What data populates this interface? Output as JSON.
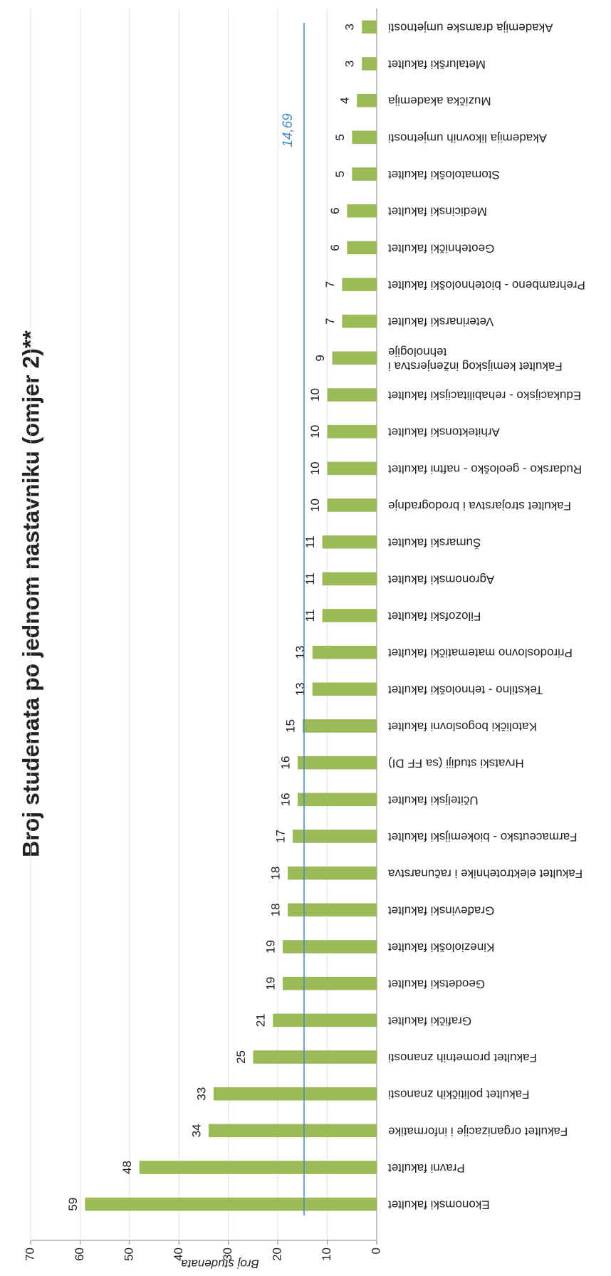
{
  "chart_data": {
    "type": "bar",
    "title": "Broj studenata po jednom nastavniku (omjer 2)**",
    "y_label": "Broj studenata",
    "categories": [
      "Ekonomski fakultet",
      "Pravni fakultet",
      "Fakultet organizacije i informatike",
      "Fakultet političkih znanosti",
      "Fakultet prometnih znanosti",
      "Grafički fakultet",
      "Geodetski fakultet",
      "Kineziološki fakultet",
      "Građevinski fakultet",
      "Fakultet elektrotehnike i računarstva",
      "Farmaceutsko - biokemijski fakultet",
      "Učiteljski fakultet",
      "Hrvatski studiji  (sa FF DI)",
      "Katolički bogoslovni fakultet",
      "Tekstilno - tehnološki fakultet",
      "Prirodoslovno matematički fakultet",
      "Filozofski fakultet",
      "Agronomski fakultet",
      "Šumarski fakultet",
      "Fakultet strojarstva i brodogradnje",
      "Rudarsko - geološko - naftni fakultet",
      "Arhitektonski fakultet",
      "Edukacijsko - rehabilitacijski fakultet",
      "Fakultet kemijskog inženjerstva i tehnologije",
      "Veterinarski fakultet",
      "Prehrambeno - biotehnološki fakultet",
      "Geotehnički fakultet",
      "Medicinski fakultet",
      "Stomatološki fakultet",
      "Akademija likovnih umjetnosti",
      "Muzička akademija",
      "Metalurški fakultet",
      "Akademija dramske umjetnosti"
    ],
    "values": [
      59,
      48,
      34,
      33,
      25,
      21,
      19,
      19,
      18,
      18,
      17,
      16,
      16,
      15,
      13,
      13,
      11,
      11,
      11,
      10,
      10,
      10,
      10,
      9,
      7,
      7,
      6,
      6,
      5,
      5,
      4,
      3,
      3
    ],
    "color": "#9bbb59",
    "average": {
      "value": 14.69,
      "label": "14,69",
      "color": "#4a86c8"
    },
    "ylim": [
      0,
      70
    ],
    "yticks": [
      0,
      10,
      20,
      30,
      40,
      50,
      60,
      70
    ],
    "grid": true
  }
}
